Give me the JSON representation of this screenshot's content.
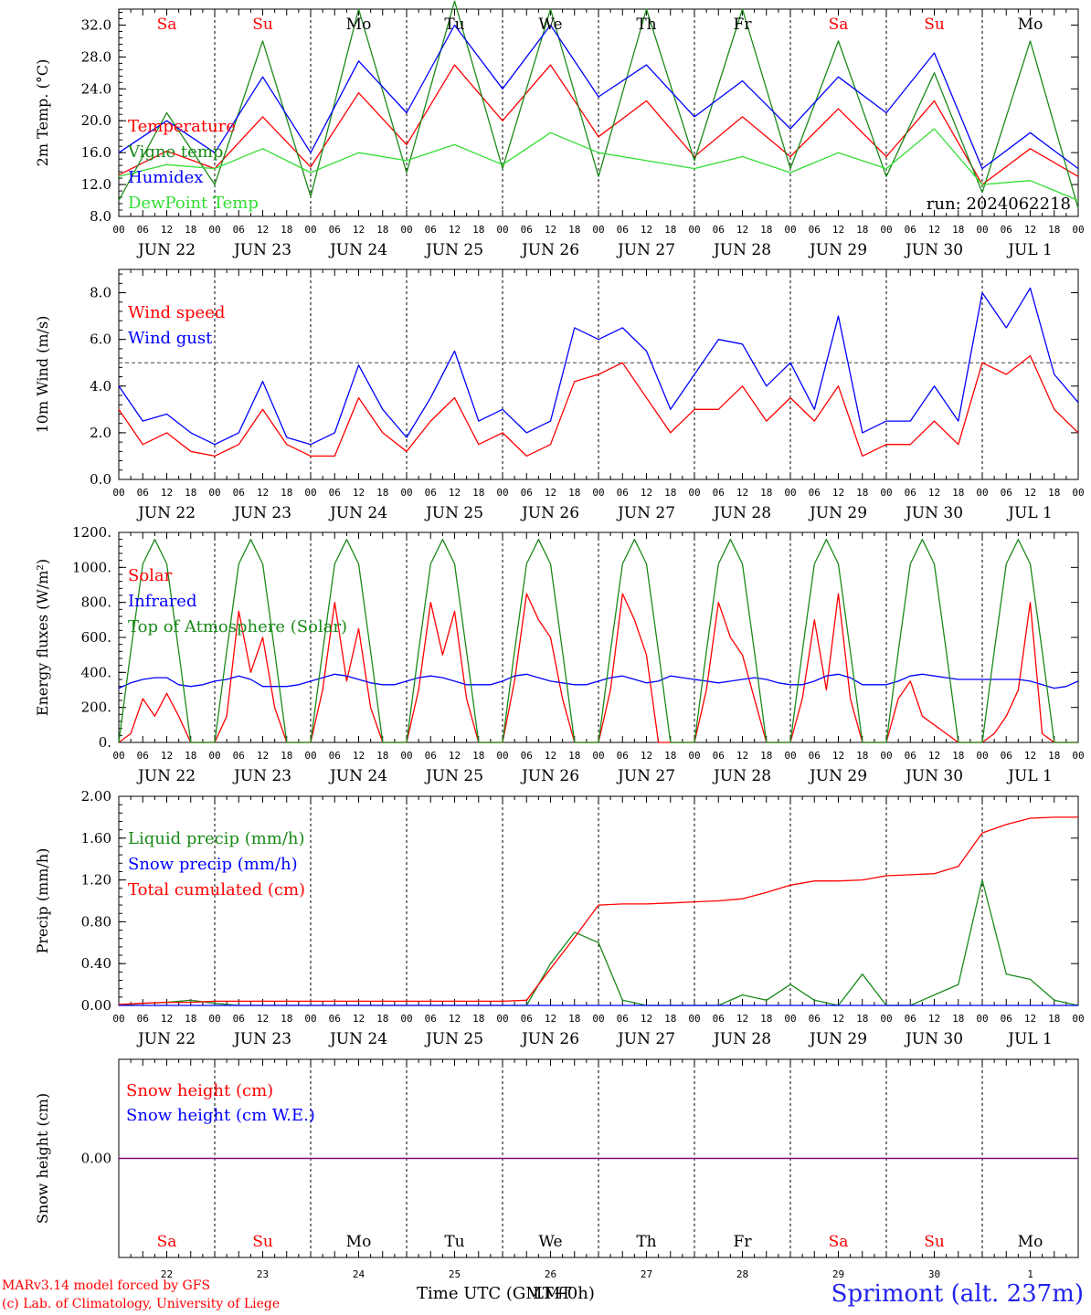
{
  "colors": {
    "red": "#ff0000",
    "green": "#1a8a1a",
    "blue": "#0000ff",
    "lightgreen": "#33dd33",
    "purple": "#800080",
    "weekend": "#ff0000"
  },
  "days": [
    "JUN 22",
    "JUN 23",
    "JUN 24",
    "JUN 25",
    "JUN 26",
    "JUN 27",
    "JUN 28",
    "JUN 29",
    "JUN 30",
    "JUL  1"
  ],
  "hour_ticks": [
    "00",
    "06",
    "12",
    "18"
  ],
  "final_tick": "00",
  "weekdays": [
    {
      "label": "Sa",
      "weekend": true
    },
    {
      "label": "Su",
      "weekend": true
    },
    {
      "label": "Mo",
      "weekend": false
    },
    {
      "label": "Tu",
      "weekend": false
    },
    {
      "label": "We",
      "weekend": false
    },
    {
      "label": "Th",
      "weekend": false
    },
    {
      "label": "Fr",
      "weekend": false
    },
    {
      "label": "Sa",
      "weekend": true
    },
    {
      "label": "Su",
      "weekend": true
    },
    {
      "label": "Mo",
      "weekend": false
    }
  ],
  "daynums": [
    "22",
    "23",
    "24",
    "25",
    "26",
    "27",
    "28",
    "29",
    "30",
    "1"
  ],
  "footer": {
    "model": "MARv3.14 model forced by GFS",
    "lab": "(c) Lab. of Climatology, University of Liege",
    "time_axis": "Time UTC (GMT+0h)",
    "time_axis_overlay": "LMT",
    "station": "Sprimont (alt. 237m)"
  },
  "chart_data": [
    {
      "type": "line",
      "ylabel": "2m Temp. (°C)",
      "ylim": [
        8,
        34
      ],
      "yticks": [
        8.0,
        12.0,
        16.0,
        20.0,
        24.0,
        28.0,
        32.0
      ],
      "ytick_labels": [
        "8.0",
        "12.0",
        "16.0",
        "20.0",
        "24.0",
        "28.0",
        "32.0"
      ],
      "run_label": "run: 2024062218",
      "show_weekdays": true,
      "x": [
        0,
        12,
        24,
        36,
        48,
        60,
        72,
        84,
        96,
        108,
        120,
        132,
        144,
        156,
        168,
        180,
        192,
        204,
        216,
        228,
        240
      ],
      "series": [
        {
          "name": "Temperature",
          "color": "red",
          "values": [
            13.2,
            16.2,
            14,
            20.5,
            14.2,
            23.5,
            17,
            27,
            20,
            27,
            18,
            22.5,
            15.5,
            20.5,
            15.5,
            21.5,
            15.5,
            22.5,
            12,
            16.5,
            13
          ]
        },
        {
          "name": "Vigne temp",
          "color": "green",
          "values": [
            10,
            21,
            12,
            30,
            10.5,
            34,
            13.5,
            35,
            14,
            34,
            13,
            34,
            15,
            34,
            14,
            30,
            13,
            26,
            11,
            30,
            9
          ]
        },
        {
          "name": "Humidex",
          "color": "blue",
          "values": [
            16,
            20,
            16,
            25.5,
            16,
            27.5,
            21,
            32,
            24,
            32,
            23,
            27,
            20.5,
            25,
            19,
            25.5,
            21,
            28.5,
            14,
            18.5,
            14
          ]
        },
        {
          "name": "DewPoint Temp",
          "color": "lightgreen",
          "values": [
            13,
            14.5,
            14,
            16.5,
            13.5,
            16,
            15,
            17,
            14.5,
            18.5,
            16,
            15,
            14,
            15.5,
            13.5,
            16,
            14,
            19,
            12,
            12.5,
            10
          ]
        }
      ]
    },
    {
      "type": "line",
      "ylabel": "10m Wind (m/s)",
      "ylim": [
        0,
        9
      ],
      "yticks": [
        0,
        2,
        4,
        6,
        8
      ],
      "ytick_labels": [
        "0.0",
        "2.0",
        "4.0",
        "6.0",
        "8.0"
      ],
      "hline": 5,
      "x": [
        0,
        6,
        12,
        18,
        24,
        30,
        36,
        42,
        48,
        54,
        60,
        66,
        72,
        78,
        84,
        90,
        96,
        102,
        108,
        114,
        120,
        126,
        132,
        138,
        144,
        150,
        156,
        162,
        168,
        174,
        180,
        186,
        192,
        198,
        204,
        210,
        216,
        222,
        228,
        234,
        240
      ],
      "series": [
        {
          "name": "Wind speed",
          "color": "red",
          "values": [
            3,
            1.5,
            2,
            1.2,
            1,
            1.5,
            3,
            1.5,
            1,
            1,
            3.5,
            2,
            1.2,
            2.5,
            3.5,
            1.5,
            2,
            1,
            1.5,
            4.2,
            4.5,
            5,
            3.5,
            2,
            3,
            3,
            4,
            2.5,
            3.5,
            2.5,
            4,
            1,
            1.5,
            1.5,
            2.5,
            1.5,
            5,
            4.5,
            5.3,
            3,
            2
          ]
        },
        {
          "name": "Wind gust",
          "color": "blue",
          "values": [
            4,
            2.5,
            2.8,
            2,
            1.5,
            2,
            4.2,
            1.8,
            1.5,
            2,
            4.9,
            3,
            1.8,
            3.5,
            5.5,
            2.5,
            3,
            2,
            2.5,
            6.5,
            6,
            6.5,
            5.5,
            3,
            4.5,
            6,
            5.8,
            4,
            5,
            3,
            7,
            2,
            2.5,
            2.5,
            4,
            2.5,
            8,
            6.5,
            8.2,
            4.5,
            3.3
          ]
        }
      ]
    },
    {
      "type": "line",
      "ylabel": "Energy fluxes (W/m²)",
      "ylim": [
        0,
        1200
      ],
      "yticks": [
        0,
        200,
        400,
        600,
        800,
        1000,
        1200
      ],
      "ytick_labels": [
        "0.",
        "200.",
        "400.",
        "600.",
        "800.",
        "1000.",
        "1200."
      ],
      "x": [
        0,
        3,
        6,
        9,
        12,
        15,
        18,
        21,
        24,
        27,
        30,
        33,
        36,
        39,
        42,
        45,
        48,
        51,
        54,
        57,
        60,
        63,
        66,
        69,
        72,
        75,
        78,
        81,
        84,
        87,
        90,
        93,
        96,
        99,
        102,
        105,
        108,
        111,
        114,
        117,
        120,
        123,
        126,
        129,
        132,
        135,
        138,
        141,
        144,
        147,
        150,
        153,
        156,
        159,
        162,
        165,
        168,
        171,
        174,
        177,
        180,
        183,
        186,
        189,
        192,
        195,
        198,
        201,
        204,
        207,
        210,
        213,
        216,
        219,
        222,
        225,
        228,
        231,
        234,
        237,
        240
      ],
      "series": [
        {
          "name": "Solar",
          "color": "red",
          "values": [
            0,
            50,
            250,
            150,
            280,
            150,
            0,
            0,
            0,
            150,
            750,
            400,
            600,
            200,
            0,
            0,
            0,
            300,
            800,
            350,
            650,
            200,
            0,
            0,
            0,
            300,
            800,
            500,
            750,
            250,
            0,
            0,
            0,
            350,
            850,
            700,
            600,
            250,
            0,
            0,
            0,
            300,
            850,
            700,
            500,
            0,
            0,
            0,
            0,
            300,
            800,
            600,
            500,
            250,
            0,
            0,
            0,
            250,
            700,
            300,
            850,
            250,
            0,
            0,
            0,
            250,
            350,
            150,
            100,
            50,
            0,
            0,
            0,
            50,
            150,
            300,
            800,
            50,
            0,
            0,
            0
          ]
        },
        {
          "name": "Infrared",
          "color": "blue",
          "values": [
            310,
            340,
            360,
            370,
            370,
            330,
            320,
            330,
            350,
            360,
            380,
            360,
            320,
            320,
            320,
            330,
            350,
            370,
            390,
            380,
            360,
            340,
            330,
            330,
            350,
            370,
            380,
            370,
            350,
            330,
            330,
            330,
            350,
            380,
            390,
            370,
            350,
            340,
            330,
            330,
            350,
            370,
            380,
            360,
            340,
            350,
            380,
            370,
            360,
            350,
            340,
            350,
            360,
            370,
            360,
            340,
            330,
            330,
            350,
            380,
            390,
            370,
            330,
            330,
            330,
            350,
            380,
            390,
            380,
            370,
            360,
            360,
            360,
            360,
            360,
            360,
            350,
            330,
            310,
            320,
            350
          ]
        },
        {
          "name": "Top of Atmosphere (Solar)",
          "color": "green",
          "values": [
            0,
            520,
            1020,
            1160,
            1020,
            520,
            0,
            0,
            0,
            520,
            1020,
            1160,
            1020,
            520,
            0,
            0,
            0,
            520,
            1020,
            1160,
            1020,
            520,
            0,
            0,
            0,
            520,
            1020,
            1160,
            1020,
            520,
            0,
            0,
            0,
            520,
            1020,
            1160,
            1020,
            520,
            0,
            0,
            0,
            520,
            1020,
            1160,
            1020,
            520,
            0,
            0,
            0,
            520,
            1020,
            1160,
            1020,
            520,
            0,
            0,
            0,
            520,
            1020,
            1160,
            1020,
            520,
            0,
            0,
            0,
            520,
            1020,
            1160,
            1020,
            520,
            0,
            0,
            0,
            520,
            1020,
            1160,
            1020,
            520,
            0,
            0,
            0
          ]
        }
      ]
    },
    {
      "type": "line",
      "ylabel": "Precip (mm/h)",
      "ylim": [
        0,
        2
      ],
      "yticks": [
        0,
        0.4,
        0.8,
        1.2,
        1.6,
        2.0
      ],
      "ytick_labels": [
        "0.00",
        "0.40",
        "0.80",
        "1.20",
        "1.60",
        "2.00"
      ],
      "x": [
        0,
        6,
        12,
        18,
        24,
        30,
        36,
        42,
        48,
        54,
        60,
        66,
        72,
        78,
        84,
        90,
        96,
        102,
        108,
        114,
        120,
        126,
        132,
        138,
        144,
        150,
        156,
        162,
        168,
        174,
        180,
        186,
        192,
        198,
        204,
        210,
        216,
        222,
        228,
        234,
        240
      ],
      "series": [
        {
          "name": "Liquid precip (mm/h)",
          "color": "green",
          "values": [
            0,
            0.02,
            0.03,
            0.05,
            0.02,
            0,
            0,
            0,
            0,
            0,
            0,
            0,
            0,
            0,
            0,
            0,
            0,
            0,
            0.4,
            0.7,
            0.6,
            0.05,
            0,
            0,
            0,
            0,
            0.1,
            0.05,
            0.2,
            0.05,
            0,
            0.3,
            0,
            0,
            0.1,
            0.2,
            1.2,
            0.3,
            0.25,
            0.05,
            0
          ]
        },
        {
          "name": "Snow precip (mm/h)",
          "color": "blue",
          "values": [
            0,
            0,
            0,
            0,
            0,
            0,
            0,
            0,
            0,
            0,
            0,
            0,
            0,
            0,
            0,
            0,
            0,
            0,
            0,
            0,
            0,
            0,
            0,
            0,
            0,
            0,
            0,
            0,
            0,
            0,
            0,
            0,
            0,
            0,
            0,
            0,
            0,
            0,
            0,
            0,
            0
          ]
        },
        {
          "name": "Total cumulated (cm)",
          "color": "red",
          "values": [
            0.01,
            0.02,
            0.03,
            0.03,
            0.04,
            0.04,
            0.04,
            0.04,
            0.04,
            0.04,
            0.04,
            0.04,
            0.04,
            0.04,
            0.04,
            0.04,
            0.04,
            0.05,
            0.35,
            0.65,
            0.96,
            0.97,
            0.97,
            0.98,
            0.99,
            1.0,
            1.02,
            1.08,
            1.15,
            1.19,
            1.19,
            1.2,
            1.24,
            1.25,
            1.26,
            1.33,
            1.65,
            1.73,
            1.79,
            1.8,
            1.8
          ]
        }
      ]
    },
    {
      "type": "line",
      "ylabel": "Snow height (cm)",
      "ylim": [
        -1,
        1
      ],
      "yticks": [
        0
      ],
      "ytick_labels": [
        "0.00"
      ],
      "x": [
        0,
        240
      ],
      "series": [
        {
          "name": "Snow height (cm)",
          "color": "red",
          "values": [
            0,
            0
          ]
        },
        {
          "name": "Snow height (cm W.E.)",
          "color": "blue",
          "values": [
            0,
            0
          ]
        }
      ]
    }
  ]
}
